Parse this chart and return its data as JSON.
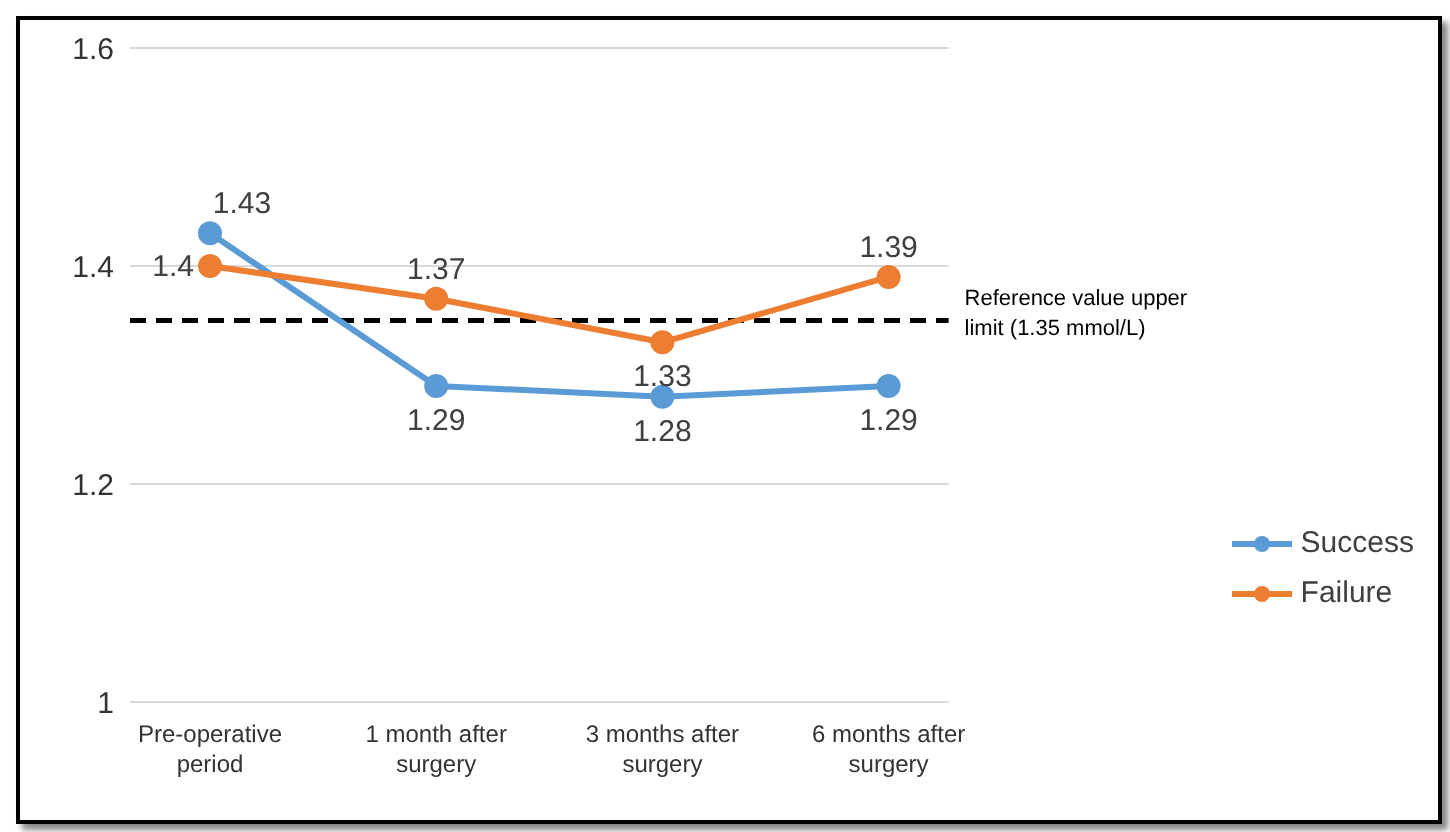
{
  "chart_data": {
    "type": "line",
    "categories": [
      "Pre-operative period",
      "1 month after surgery",
      "3 months after surgery",
      "6 months after surgery"
    ],
    "series": [
      {
        "name": "Success",
        "color": "#5b9bd5",
        "values": [
          1.43,
          1.29,
          1.28,
          1.29
        ]
      },
      {
        "name": "Failure",
        "color": "#ed7d31",
        "values": [
          1.4,
          1.37,
          1.33,
          1.39
        ]
      }
    ],
    "ylim": [
      1,
      1.6
    ],
    "yticks": [
      1,
      1.2,
      1.4,
      1.6
    ],
    "grid": "y",
    "legend": "right",
    "marker": "circle",
    "line_style": "solid",
    "data_labels": true,
    "ref_lines": [
      {
        "axis": "y",
        "value": 1.35,
        "label": "Reference value upper limit (1.35 mmol/L)",
        "color": "#000000",
        "line_style": "dashed"
      }
    ]
  }
}
